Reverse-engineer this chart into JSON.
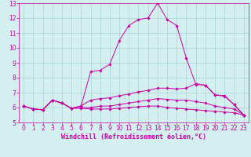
{
  "xlabel": "Windchill (Refroidissement éolien,°C)",
  "background_color": "#d4efef",
  "grid_color": "#a8d4d4",
  "line_color": "#cc00aa",
  "xlim": [
    -0.5,
    23.5
  ],
  "ylim": [
    5,
    13
  ],
  "yticks": [
    5,
    6,
    7,
    8,
    9,
    10,
    11,
    12,
    13
  ],
  "xticks": [
    0,
    1,
    2,
    3,
    4,
    5,
    6,
    7,
    8,
    9,
    10,
    11,
    12,
    13,
    14,
    15,
    16,
    17,
    18,
    19,
    20,
    21,
    22,
    23
  ],
  "series": [
    [
      6.1,
      5.9,
      5.85,
      6.5,
      6.3,
      5.95,
      6.1,
      8.4,
      8.5,
      8.9,
      10.5,
      11.5,
      11.9,
      12.0,
      13.0,
      11.9,
      11.5,
      9.3,
      7.55,
      7.5,
      6.85,
      6.8,
      6.2,
      5.5
    ],
    [
      6.1,
      5.9,
      5.85,
      6.5,
      6.3,
      5.95,
      6.1,
      6.5,
      6.6,
      6.65,
      6.8,
      6.9,
      7.05,
      7.15,
      7.3,
      7.3,
      7.25,
      7.3,
      7.6,
      7.5,
      6.85,
      6.75,
      6.2,
      5.5
    ],
    [
      6.1,
      5.9,
      5.85,
      6.5,
      6.3,
      5.95,
      6.0,
      6.0,
      6.1,
      6.1,
      6.2,
      6.3,
      6.4,
      6.5,
      6.6,
      6.55,
      6.5,
      6.5,
      6.4,
      6.3,
      6.1,
      6.0,
      5.9,
      5.5
    ],
    [
      6.1,
      5.9,
      5.85,
      6.5,
      6.3,
      5.95,
      5.95,
      5.9,
      5.9,
      5.9,
      5.95,
      6.0,
      6.05,
      6.1,
      6.1,
      6.0,
      5.95,
      5.9,
      5.85,
      5.8,
      5.75,
      5.7,
      5.65,
      5.5
    ]
  ],
  "tick_fontsize": 5.5,
  "xlabel_fontsize": 6.0,
  "marker_size": 1.8,
  "line_width": 0.7
}
